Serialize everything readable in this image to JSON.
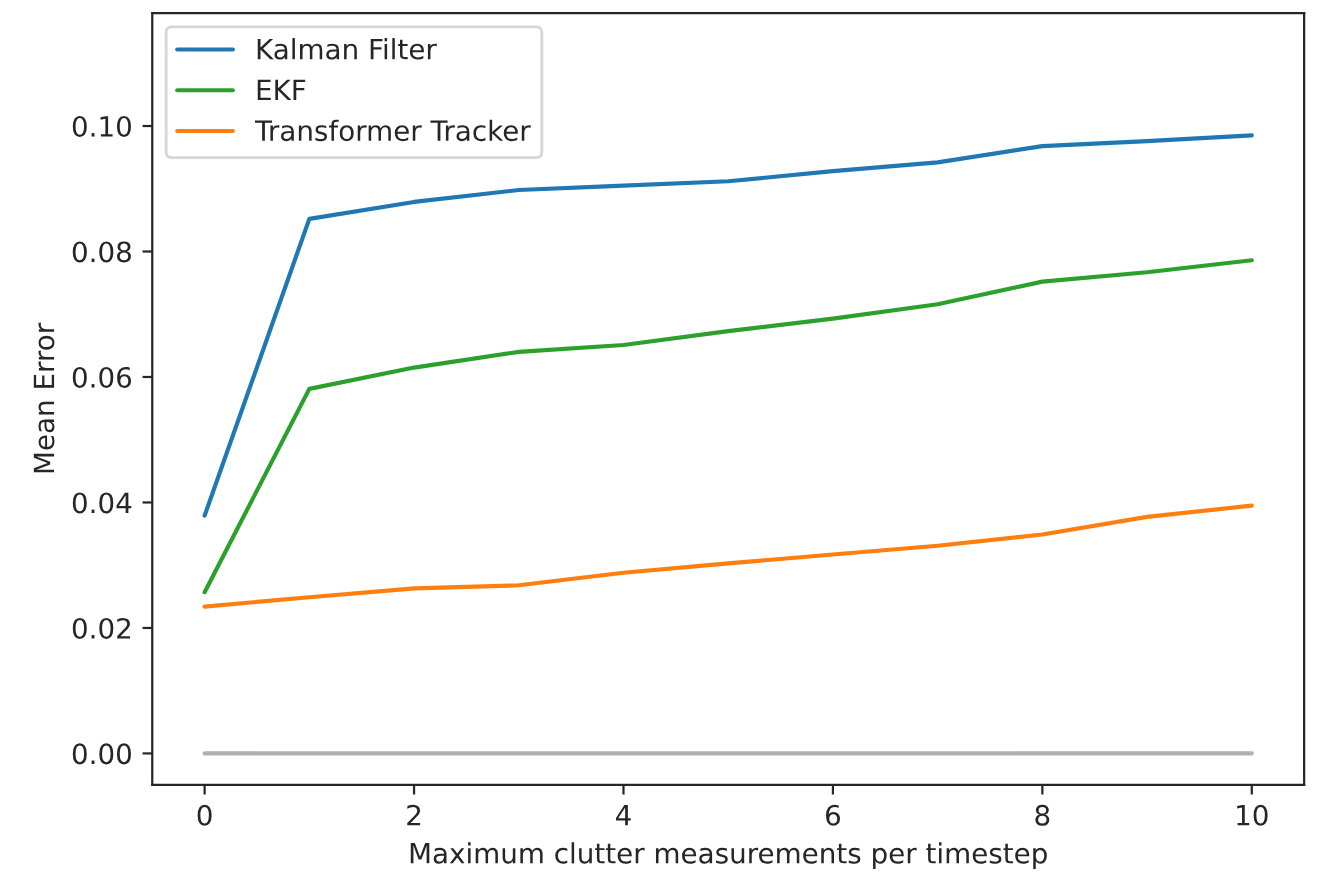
{
  "chart_data": {
    "type": "line",
    "xlabel": "Maximum clutter measurements per timestep",
    "ylabel": "Mean Error",
    "x": [
      0,
      1,
      2,
      3,
      4,
      5,
      6,
      7,
      8,
      9,
      10
    ],
    "series": [
      {
        "name": "Kalman Filter",
        "color": "#1f77b4",
        "values": [
          0.0379,
          0.0852,
          0.0879,
          0.0898,
          0.0905,
          0.0912,
          0.0928,
          0.0942,
          0.0968,
          0.0976,
          0.0985
        ]
      },
      {
        "name": "EKF",
        "color": "#2ca02c",
        "values": [
          0.0257,
          0.0581,
          0.0615,
          0.064,
          0.0651,
          0.0673,
          0.0693,
          0.0716,
          0.0752,
          0.0767,
          0.0786
        ]
      },
      {
        "name": "Transformer Tracker",
        "color": "#ff7f0e",
        "values": [
          0.0234,
          0.0249,
          0.0263,
          0.0268,
          0.0288,
          0.0303,
          0.0317,
          0.0331,
          0.0349,
          0.0377,
          0.0395
        ]
      },
      {
        "color": "#b0b0b0",
        "values": [
          0,
          0,
          0,
          0,
          0,
          0,
          0,
          0,
          0,
          0,
          0
        ]
      }
    ],
    "xlim": [
      -0.5,
      10.5
    ],
    "ylim": [
      -0.005,
      0.118
    ],
    "xticks": [
      0,
      2,
      4,
      6,
      8,
      10
    ],
    "yticks": [
      {
        "value": 0,
        "label": "0.00"
      },
      {
        "value": 0.02,
        "label": "0.02"
      },
      {
        "value": 0.04,
        "label": "0.04"
      },
      {
        "value": 0.06,
        "label": "0.06"
      },
      {
        "value": 0.08,
        "label": "0.08"
      },
      {
        "value": 0.1,
        "label": "0.10"
      }
    ],
    "grid": false,
    "legend": "top left",
    "marker": "none",
    "line_style": "solid"
  }
}
